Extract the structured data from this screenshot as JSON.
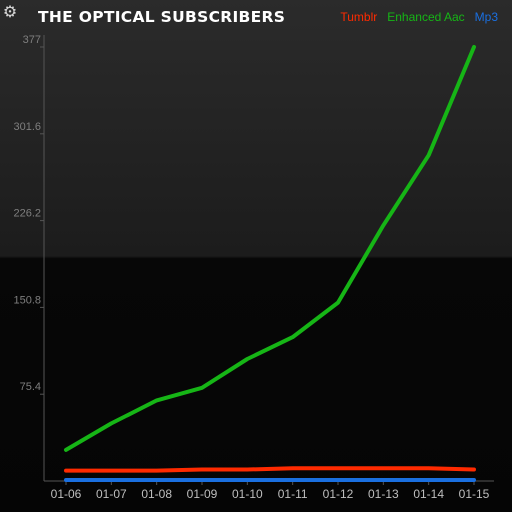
{
  "header": {
    "title": "THE OPTICAL SUBSCRIBERS",
    "settings_icon": "gear-icon"
  },
  "colors": {
    "background_top": "#262626",
    "background_bottom": "#060606",
    "axis": "#555555",
    "tumblr": "#ff2a00",
    "enhanced_aac": "#16b516",
    "mp3": "#1a6fe0"
  },
  "chart_data": {
    "type": "line",
    "title": "THE OPTICAL SUBSCRIBERS",
    "x": [
      "01-06",
      "01-07",
      "01-08",
      "01-09",
      "01-10",
      "01-11",
      "01-12",
      "01-13",
      "01-14",
      "01-15"
    ],
    "yticks": [
      75.4,
      150.8,
      226.2,
      301.6,
      377
    ],
    "ylim": [
      0,
      377
    ],
    "grid": false,
    "legend_position": "top-right",
    "series": [
      {
        "name": "Tumblr",
        "color": "#ff2a00",
        "values": [
          9,
          9,
          9,
          10,
          10,
          11,
          11,
          11,
          11,
          10
        ]
      },
      {
        "name": "Enhanced Aac",
        "color": "#16b516",
        "values": [
          27,
          50,
          70,
          81,
          106,
          125,
          155,
          222,
          283,
          377
        ]
      },
      {
        "name": "Mp3",
        "color": "#1a6fe0",
        "values": [
          0,
          0,
          0,
          0,
          0,
          0,
          0,
          0,
          0,
          0
        ]
      }
    ]
  }
}
